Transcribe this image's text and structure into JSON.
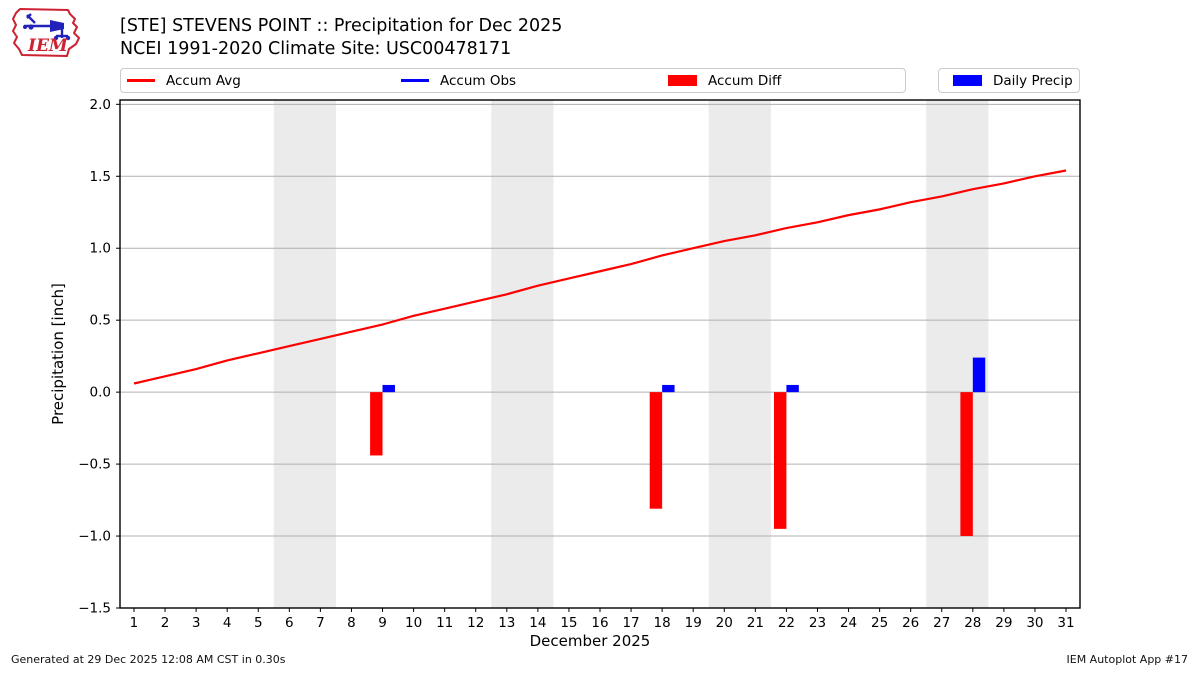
{
  "header": {
    "title": "[STE] STEVENS POINT :: Precipitation for Dec 2025",
    "subtitle": "NCEI 1991-2020 Climate Site: USC00478171"
  },
  "logo": {
    "text": "IEM"
  },
  "legend": {
    "items": [
      {
        "label": "Accum Avg",
        "swatch": "line-red"
      },
      {
        "label": "Accum Obs",
        "swatch": "line-blue"
      },
      {
        "label": "Accum Diff",
        "swatch": "patch-red"
      },
      {
        "label": "Daily Precip",
        "swatch": "patch-blue"
      }
    ]
  },
  "chart_data": {
    "type": "line+bar",
    "title": "[STE] STEVENS POINT :: Precipitation for Dec 2025",
    "subtitle": "NCEI 1991-2020 Climate Site: USC00478171",
    "xlabel": "December 2025",
    "ylabel": "Precipitation [inch]",
    "xlim": [
      0.55,
      31.45
    ],
    "ylim": [
      -1.5,
      2.03
    ],
    "grid": "horizontal",
    "legend_position": "top",
    "x_ticks": [
      1,
      2,
      3,
      4,
      5,
      6,
      7,
      8,
      9,
      10,
      11,
      12,
      13,
      14,
      15,
      16,
      17,
      18,
      19,
      20,
      21,
      22,
      23,
      24,
      25,
      26,
      27,
      28,
      29,
      30,
      31
    ],
    "y_ticks": [
      {
        "v": -1.5,
        "label": "−1.5"
      },
      {
        "v": -1.0,
        "label": "−1.0"
      },
      {
        "v": -0.5,
        "label": "−0.5"
      },
      {
        "v": 0.0,
        "label": "0.0"
      },
      {
        "v": 0.5,
        "label": "0.5"
      },
      {
        "v": 1.0,
        "label": "1.0"
      },
      {
        "v": 1.5,
        "label": "1.5"
      },
      {
        "v": 2.0,
        "label": "2.0"
      }
    ],
    "weekend_bands": [
      [
        5.5,
        7.5
      ],
      [
        12.5,
        14.5
      ],
      [
        19.5,
        21.5
      ],
      [
        26.5,
        28.5
      ]
    ],
    "series": [
      {
        "name": "Accum Avg",
        "type": "line",
        "color": "#ff0000",
        "width": 2.2,
        "x": [
          1,
          2,
          3,
          4,
          5,
          6,
          7,
          8,
          9,
          10,
          11,
          12,
          13,
          14,
          15,
          16,
          17,
          18,
          19,
          20,
          21,
          22,
          23,
          24,
          25,
          26,
          27,
          28,
          29,
          30,
          31
        ],
        "y": [
          0.06,
          0.11,
          0.16,
          0.22,
          0.27,
          0.32,
          0.37,
          0.42,
          0.47,
          0.53,
          0.58,
          0.63,
          0.68,
          0.74,
          0.79,
          0.84,
          0.89,
          0.95,
          1.0,
          1.05,
          1.09,
          1.14,
          1.18,
          1.23,
          1.27,
          1.32,
          1.36,
          1.41,
          1.45,
          1.5,
          1.54
        ]
      },
      {
        "name": "Accum Obs",
        "type": "line",
        "color": "#0000ff",
        "width": 2.2,
        "x": [],
        "y": []
      },
      {
        "name": "Accum Diff",
        "type": "bar",
        "color": "#ff0000",
        "offset": -0.2,
        "bar_width": 0.4,
        "x": [
          9,
          18,
          22,
          28
        ],
        "y": [
          -0.44,
          -0.81,
          -0.95,
          -1.0
        ]
      },
      {
        "name": "Daily Precip",
        "type": "bar",
        "color": "#0000ff",
        "offset": 0.2,
        "bar_width": 0.4,
        "x": [
          9,
          18,
          22,
          28
        ],
        "y": [
          0.05,
          0.05,
          0.05,
          0.24
        ]
      }
    ]
  },
  "colors": {
    "red": "#ff0000",
    "blue": "#0000ff",
    "grid": "#b0b0b0",
    "band": "#ebebeb",
    "spine": "#000000",
    "legend_border": "#cccccc",
    "logo_red": "#cc2233",
    "logo_blue": "#2222bb"
  },
  "footer": {
    "left": "Generated at 29 Dec 2025 12:08 AM CST in 0.30s",
    "right": "IEM Autoplot App #17"
  }
}
